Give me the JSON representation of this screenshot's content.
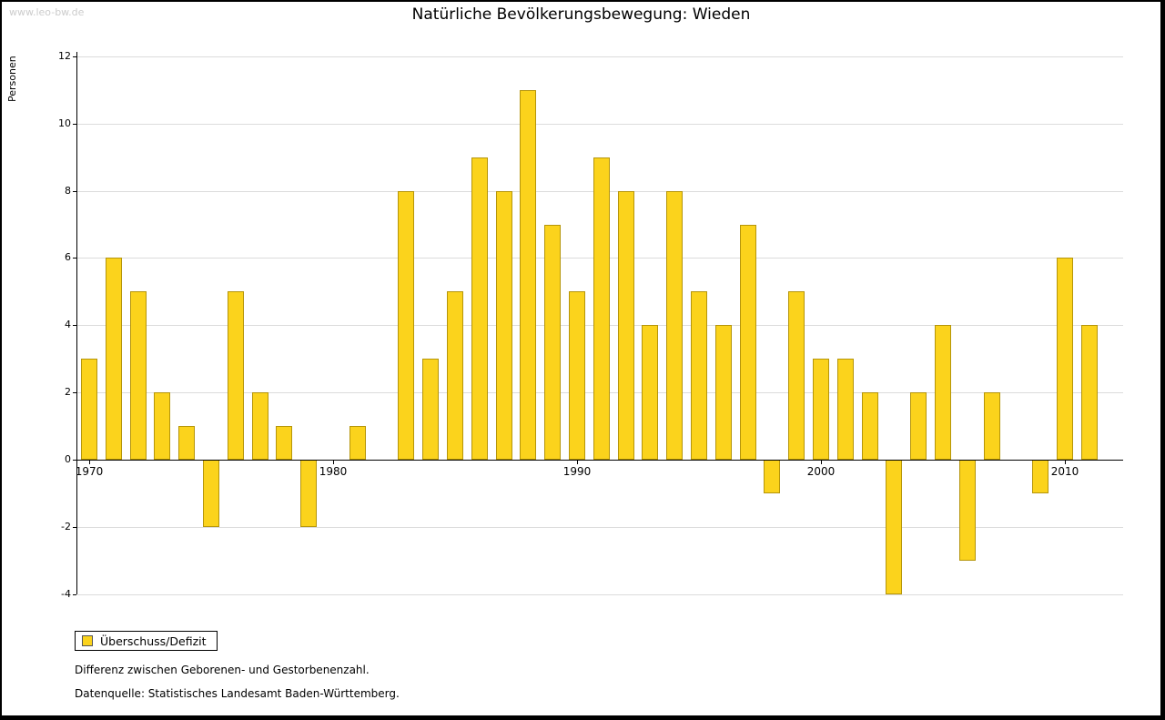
{
  "watermark": "www.leo-bw.de",
  "legend": {
    "label": "Überschuss/Defizit"
  },
  "captions": {
    "line1": "Differenz zwischen Geborenen- und Gestorbenenzahl.",
    "line2": "Datenquelle: Statistisches Landesamt Baden-Württemberg."
  },
  "chart_data": {
    "type": "bar",
    "title": "Natürliche Bevölkerungsbewegung: Wieden",
    "xlabel": "",
    "ylabel": "Personen",
    "ylim": [
      -4,
      12
    ],
    "yticks": [
      12,
      10,
      8,
      6,
      4,
      2,
      0,
      -2,
      -4
    ],
    "xticks": [
      1970,
      1980,
      1990,
      2000,
      2010
    ],
    "grid": true,
    "legend_entries": [
      "Überschuss/Defizit"
    ],
    "legend_position": "bottom-left",
    "bar_color": "#FBD31C",
    "bar_border_color": "#B5950A",
    "categories": [
      1970,
      1971,
      1972,
      1973,
      1974,
      1975,
      1976,
      1977,
      1978,
      1979,
      1980,
      1981,
      1982,
      1983,
      1984,
      1985,
      1986,
      1987,
      1988,
      1989,
      1990,
      1991,
      1992,
      1993,
      1994,
      1995,
      1996,
      1997,
      1998,
      1999,
      2000,
      2001,
      2002,
      2003,
      2004,
      2005,
      2006,
      2007,
      2008,
      2009,
      2010,
      2011
    ],
    "values": [
      3,
      6,
      5,
      2,
      1,
      -2,
      5,
      2,
      1,
      -2,
      0,
      1,
      0,
      8,
      3,
      5,
      9,
      8,
      11,
      7,
      5,
      9,
      8,
      4,
      8,
      5,
      4,
      7,
      -1,
      5,
      3,
      3,
      2,
      -4,
      2,
      4,
      -3,
      2,
      0,
      -1,
      6,
      4
    ]
  }
}
